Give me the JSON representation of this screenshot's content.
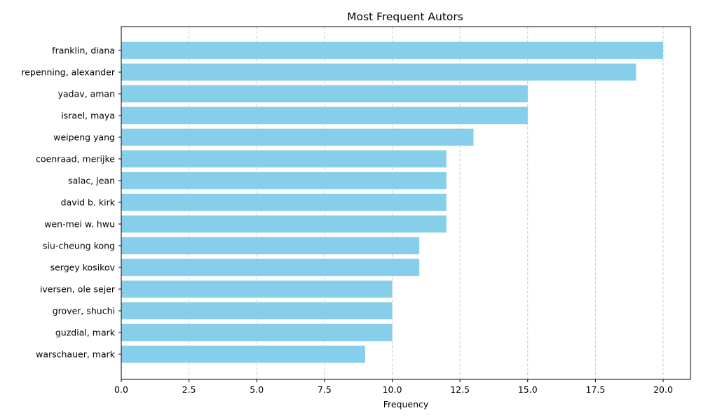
{
  "chart_data": {
    "type": "bar",
    "orientation": "horizontal",
    "title": "Most Frequent Autors",
    "xlabel": "Frequency",
    "ylabel": "",
    "categories": [
      "franklin, diana",
      "repenning, alexander",
      "yadav, aman",
      "israel, maya",
      "weipeng yang",
      "coenraad, merijke",
      "salac, jean",
      "david b. kirk",
      "wen-mei w. hwu",
      "siu-cheung kong",
      "sergey kosikov",
      "iversen, ole sejer",
      "grover, shuchi",
      "guzdial, mark",
      "warschauer, mark"
    ],
    "values": [
      20,
      19,
      15,
      15,
      13,
      12,
      12,
      12,
      12,
      11,
      11,
      10,
      10,
      10,
      9
    ],
    "xlim": [
      0,
      21
    ],
    "xticks": [
      "0.0",
      "2.5",
      "5.0",
      "7.5",
      "10.0",
      "12.5",
      "15.0",
      "17.5",
      "20.0"
    ],
    "xtick_values": [
      0,
      2.5,
      5,
      7.5,
      10,
      12.5,
      15,
      17.5,
      20
    ],
    "grid": "x dashed",
    "bar_color": "#87ceeb",
    "grid_color": "#c8c8c8"
  }
}
